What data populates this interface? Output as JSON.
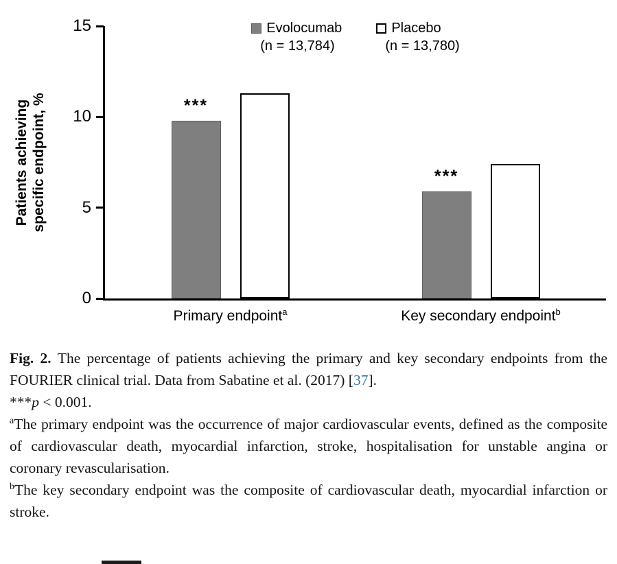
{
  "chart_data": {
    "type": "bar",
    "categories": [
      "Primary endpoint",
      "Key secondary endpoint"
    ],
    "category_superscripts": [
      "a",
      "b"
    ],
    "series": [
      {
        "name": "Evolocumab",
        "n_label": "(n = 13,784)",
        "values": [
          9.8,
          5.9
        ],
        "fill": "#7f7f7f",
        "border": "#5f5f5f",
        "border_width": 1,
        "significance": "***"
      },
      {
        "name": "Placebo",
        "n_label": "(n = 13,780)",
        "values": [
          11.3,
          7.4
        ],
        "fill": "#ffffff",
        "border": "#000000",
        "border_width": 2
      }
    ],
    "title": "",
    "xlabel": "",
    "ylabel": "Patients achieving specific endpoint, %",
    "ylim": [
      0,
      15
    ],
    "yticks": [
      0,
      5,
      10,
      15
    ],
    "grid": false,
    "legend_position": "top-center"
  },
  "y_axis_title": "Patients achieving specific endpoint, %",
  "caption": {
    "fig_label": "Fig. 2. ",
    "body": "The percentage of patients achieving the primary and key secondary endpoints from the FOURIER clinical trial. Data from Sabatine et al. (2017)",
    "ref_open": "[",
    "ref_number": "37",
    "ref_close": "].",
    "sig_stars": "***",
    "sig_p": "p",
    "sig_rest": " < 0.001.",
    "footnotes": [
      {
        "marker": "a",
        "text": "The primary endpoint was the occurrence of major cardiovascular events, defined as the composite of cardiovascular death, myocardial infarction, stroke, hospitalisation for unstable angina or coronary revascularisation."
      },
      {
        "marker": "b",
        "text": "The key secondary endpoint was the composite of cardiovascular death, myocardial infarction or stroke."
      }
    ]
  },
  "colors": {
    "evolocumab_fill": "#7f7f7f",
    "placebo_fill": "#ffffff",
    "bar_border": "#000000",
    "axis": "#000000",
    "link": "#3578a9"
  }
}
